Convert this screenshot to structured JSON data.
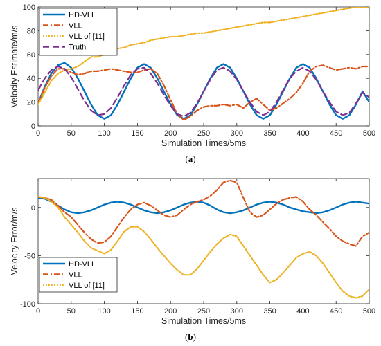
{
  "chart_data": [
    {
      "type": "line",
      "caption_letter": "a",
      "xlabel": "Simulation Times/5ms",
      "ylabel": "Velocity Estimate/m/s",
      "xlim": [
        0,
        500
      ],
      "ylim": [
        0,
        100
      ],
      "xticks": [
        "0",
        "50",
        "100",
        "150",
        "200",
        "250",
        "300",
        "350",
        "400",
        "450",
        "500"
      ],
      "yticks": [
        "0",
        "20",
        "40",
        "60",
        "80",
        "100"
      ],
      "grid": false,
      "legend_position": "top-left",
      "x": [
        0,
        10,
        20,
        30,
        40,
        50,
        60,
        70,
        80,
        90,
        100,
        110,
        120,
        130,
        140,
        150,
        160,
        170,
        180,
        190,
        200,
        210,
        220,
        230,
        240,
        250,
        260,
        270,
        280,
        290,
        300,
        310,
        320,
        330,
        340,
        350,
        360,
        370,
        380,
        390,
        400,
        410,
        420,
        430,
        440,
        450,
        460,
        470,
        480,
        490,
        500
      ],
      "series": [
        {
          "name": "HD-VLL",
          "color": "#0072BD",
          "dash": "solid",
          "values": [
            19,
            33,
            44,
            51,
            53,
            49,
            40,
            29,
            18,
            9,
            6,
            9,
            18,
            29,
            40,
            49,
            52,
            49,
            40,
            29,
            18,
            9,
            6,
            9,
            18,
            29,
            40,
            49,
            52,
            49,
            40,
            29,
            18,
            9,
            6,
            9,
            18,
            29,
            40,
            49,
            52,
            49,
            40,
            29,
            18,
            9,
            6,
            9,
            18,
            29,
            20
          ]
        },
        {
          "name": "VLL",
          "color": "#D95319",
          "dash": "dashdot",
          "values": [
            19,
            32,
            42,
            48,
            48,
            45,
            43,
            44,
            46,
            46,
            47,
            48,
            47,
            46,
            45,
            45,
            47,
            48,
            44,
            34,
            22,
            10,
            5,
            8,
            13,
            16,
            17,
            17,
            18,
            17,
            18,
            15,
            20,
            23,
            18,
            13,
            15,
            19,
            23,
            28,
            36,
            46,
            50,
            51,
            49,
            47,
            48,
            49,
            48,
            50,
            50
          ]
        },
        {
          "name": "VLL of [11]",
          "color": "#EDB120",
          "dash": "dotted",
          "values": [
            18,
            28,
            38,
            44,
            47,
            48,
            50,
            54,
            58,
            58,
            60,
            63,
            65,
            66,
            68,
            69,
            70,
            72,
            73,
            74,
            75,
            75,
            76,
            77,
            78,
            78,
            79,
            80,
            81,
            82,
            83,
            84,
            85,
            86,
            87,
            87,
            88,
            89,
            90,
            91,
            92,
            93,
            94,
            95,
            96,
            97,
            98,
            99,
            100,
            100,
            100
          ]
        },
        {
          "name": "Truth",
          "color": "#7E2F8E",
          "dash": "dashed",
          "values": [
            30,
            40,
            47,
            50,
            48,
            41,
            31,
            21,
            13,
            9,
            10,
            15,
            24,
            34,
            43,
            48,
            49,
            44,
            36,
            26,
            17,
            10,
            8,
            11,
            19,
            29,
            39,
            47,
            49,
            46,
            39,
            29,
            20,
            12,
            9,
            12,
            20,
            30,
            40,
            46,
            49,
            46,
            39,
            29,
            20,
            12,
            9,
            11,
            19,
            28,
            24
          ]
        }
      ]
    },
    {
      "type": "line",
      "caption_letter": "b",
      "xlabel": "Simulation Times/5ms",
      "ylabel": "Velocity Error/m/s",
      "xlim": [
        0,
        500
      ],
      "ylim": [
        -100,
        30
      ],
      "xticks": [
        "0",
        "50",
        "100",
        "150",
        "200",
        "250",
        "300",
        "350",
        "400",
        "450",
        "500"
      ],
      "yticks": [
        "-100",
        "-50",
        "0"
      ],
      "ytick_values": [
        -100,
        -50,
        0
      ],
      "grid": false,
      "legend_position": "bottom-left",
      "x": [
        0,
        10,
        20,
        30,
        40,
        50,
        60,
        70,
        80,
        90,
        100,
        110,
        120,
        130,
        140,
        150,
        160,
        170,
        180,
        190,
        200,
        210,
        220,
        230,
        240,
        250,
        260,
        270,
        280,
        290,
        300,
        310,
        320,
        330,
        340,
        350,
        360,
        370,
        380,
        390,
        400,
        410,
        420,
        430,
        440,
        450,
        460,
        470,
        480,
        490,
        500
      ],
      "series": [
        {
          "name": "HD-VLL",
          "color": "#0072BD",
          "dash": "solid",
          "values": [
            10,
            9,
            6,
            2,
            -2,
            -5,
            -6,
            -5,
            -3,
            0,
            3,
            5,
            6,
            5,
            3,
            0,
            -3,
            -5,
            -6,
            -5,
            -3,
            0,
            3,
            5,
            6,
            5,
            2,
            -2,
            -5,
            -6,
            -5,
            -3,
            0,
            3,
            5,
            6,
            5,
            3,
            0,
            -2,
            -4,
            -5,
            -6,
            -5,
            -3,
            0,
            3,
            5,
            6,
            5,
            4
          ]
        },
        {
          "name": "VLL",
          "color": "#D95319",
          "dash": "dashdot",
          "values": [
            11,
            10,
            8,
            2,
            -5,
            -10,
            -18,
            -26,
            -33,
            -37,
            -36,
            -30,
            -20,
            -10,
            -2,
            3,
            5,
            2,
            -3,
            -8,
            -10,
            -8,
            -2,
            3,
            6,
            8,
            12,
            18,
            26,
            28,
            26,
            10,
            -5,
            -10,
            -8,
            -2,
            4,
            8,
            10,
            11,
            6,
            -2,
            -8,
            -15,
            -22,
            -30,
            -35,
            -38,
            -40,
            -30,
            -26
          ]
        },
        {
          "name": "VLL of [11]",
          "color": "#EDB120",
          "dash": "dotted",
          "values": [
            11,
            10,
            6,
            0,
            -10,
            -18,
            -26,
            -35,
            -42,
            -45,
            -48,
            -44,
            -35,
            -25,
            -20,
            -20,
            -25,
            -33,
            -42,
            -50,
            -58,
            -65,
            -70,
            -70,
            -64,
            -55,
            -46,
            -38,
            -32,
            -28,
            -30,
            -40,
            -50,
            -60,
            -70,
            -78,
            -75,
            -68,
            -60,
            -52,
            -48,
            -46,
            -50,
            -58,
            -68,
            -78,
            -87,
            -92,
            -94,
            -92,
            -85
          ]
        }
      ]
    }
  ]
}
